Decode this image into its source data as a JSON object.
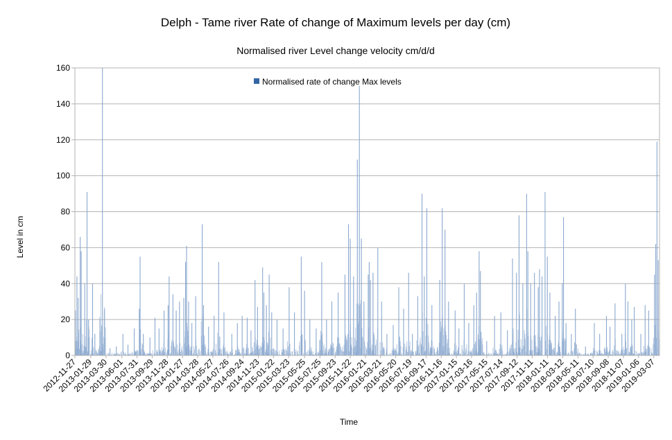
{
  "chart_data": {
    "type": "bar",
    "title": "Delph - Tame river Rate of change of Maximum levels per day (cm)",
    "subtitle": "Normalised river Level change velocity cm/d/d",
    "xlabel": "Time",
    "ylabel": "Level in cm",
    "ylim": [
      0,
      160
    ],
    "yticks": [
      0,
      20,
      40,
      60,
      80,
      100,
      120,
      140,
      160
    ],
    "grid": true,
    "legend": {
      "placement": "top-center",
      "entries": [
        "Normalised rate of change Max levels"
      ]
    },
    "colors": {
      "series": "#8aa8cf",
      "legend_swatch": "#3465a4",
      "grid": "#b3b3b3",
      "axis": "#b3b3b3"
    },
    "x_tick_labels": [
      "2012-11-27",
      "2013-01-29",
      "2013-03-30",
      "2013-06-01",
      "2013-07-31",
      "2013-09-29",
      "2013-11-28",
      "2014-01-27",
      "2014-03-28",
      "2014-05-27",
      "2014-07-26",
      "2014-09-24",
      "2014-11-23",
      "2015-01-22",
      "2015-03-23",
      "2015-05-25",
      "2015-07-25",
      "2015-09-23",
      "2015-11-22",
      "2016-01-21",
      "2016-03-21",
      "2016-05-20",
      "2016-07-19",
      "2016-09-17",
      "2016-11-16",
      "2017-01-15",
      "2017-03-16",
      "2017-05-15",
      "2017-07-14",
      "2017-09-12",
      "2017-11-11",
      "2018-01-11",
      "2018-03-12",
      "2018-05-11",
      "2018-07-10",
      "2018-09-08",
      "2018-11-07",
      "2019-01-06",
      "2019-03-07"
    ],
    "x_range": [
      "2012-11-27",
      "2019-03-30"
    ],
    "series": [
      {
        "name": "Normalised rate of change Max levels",
        "peaks": [
          {
            "date": "2012-11-29",
            "value": 25
          },
          {
            "date": "2012-12-05",
            "value": 44
          },
          {
            "date": "2012-12-10",
            "value": 32
          },
          {
            "date": "2012-12-18",
            "value": 66
          },
          {
            "date": "2012-12-22",
            "value": 58
          },
          {
            "date": "2013-01-05",
            "value": 40
          },
          {
            "date": "2013-01-14",
            "value": 91
          },
          {
            "date": "2013-01-20",
            "value": 20
          },
          {
            "date": "2013-02-05",
            "value": 40
          },
          {
            "date": "2013-02-14",
            "value": 12
          },
          {
            "date": "2013-03-05",
            "value": 5
          },
          {
            "date": "2013-03-16",
            "value": 160
          },
          {
            "date": "2013-04-15",
            "value": 4
          },
          {
            "date": "2013-05-10",
            "value": 5
          },
          {
            "date": "2013-06-05",
            "value": 12
          },
          {
            "date": "2013-06-25",
            "value": 6
          },
          {
            "date": "2013-07-20",
            "value": 15
          },
          {
            "date": "2013-08-09",
            "value": 26
          },
          {
            "date": "2013-08-12",
            "value": 55
          },
          {
            "date": "2013-08-25",
            "value": 12
          },
          {
            "date": "2013-09-20",
            "value": 10
          },
          {
            "date": "2013-10-10",
            "value": 21
          },
          {
            "date": "2013-10-26",
            "value": 15
          },
          {
            "date": "2013-11-15",
            "value": 25
          },
          {
            "date": "2013-12-01",
            "value": 28
          },
          {
            "date": "2013-12-05",
            "value": 44
          },
          {
            "date": "2013-12-20",
            "value": 34
          },
          {
            "date": "2014-01-02",
            "value": 25
          },
          {
            "date": "2014-01-15",
            "value": 30
          },
          {
            "date": "2014-02-01",
            "value": 32
          },
          {
            "date": "2014-02-08",
            "value": 52
          },
          {
            "date": "2014-02-12",
            "value": 61
          },
          {
            "date": "2014-02-20",
            "value": 30
          },
          {
            "date": "2014-03-05",
            "value": 18
          },
          {
            "date": "2014-03-20",
            "value": 33
          },
          {
            "date": "2014-04-15",
            "value": 73
          },
          {
            "date": "2014-04-20",
            "value": 28
          },
          {
            "date": "2014-05-10",
            "value": 16
          },
          {
            "date": "2014-06-01",
            "value": 22
          },
          {
            "date": "2014-06-19",
            "value": 52
          },
          {
            "date": "2014-07-10",
            "value": 24
          },
          {
            "date": "2014-08-10",
            "value": 12
          },
          {
            "date": "2014-09-01",
            "value": 18
          },
          {
            "date": "2014-09-20",
            "value": 22
          },
          {
            "date": "2014-10-10",
            "value": 21
          },
          {
            "date": "2014-10-25",
            "value": 14
          },
          {
            "date": "2014-11-10",
            "value": 42
          },
          {
            "date": "2014-11-20",
            "value": 27
          },
          {
            "date": "2014-12-10",
            "value": 49
          },
          {
            "date": "2014-12-15",
            "value": 35
          },
          {
            "date": "2014-12-25",
            "value": 28
          },
          {
            "date": "2015-01-05",
            "value": 45
          },
          {
            "date": "2015-01-15",
            "value": 24
          },
          {
            "date": "2015-02-05",
            "value": 20
          },
          {
            "date": "2015-03-01",
            "value": 15
          },
          {
            "date": "2015-03-25",
            "value": 38
          },
          {
            "date": "2015-04-15",
            "value": 24
          },
          {
            "date": "2015-05-12",
            "value": 55
          },
          {
            "date": "2015-05-25",
            "value": 36
          },
          {
            "date": "2015-06-15",
            "value": 20
          },
          {
            "date": "2015-07-10",
            "value": 15
          },
          {
            "date": "2015-08-01",
            "value": 52
          },
          {
            "date": "2015-08-20",
            "value": 20
          },
          {
            "date": "2015-09-10",
            "value": 30
          },
          {
            "date": "2015-10-05",
            "value": 35
          },
          {
            "date": "2015-11-01",
            "value": 45
          },
          {
            "date": "2015-11-15",
            "value": 73
          },
          {
            "date": "2015-11-22",
            "value": 65
          },
          {
            "date": "2015-12-05",
            "value": 44
          },
          {
            "date": "2015-12-20",
            "value": 109
          },
          {
            "date": "2015-12-28",
            "value": 150
          },
          {
            "date": "2016-01-05",
            "value": 65
          },
          {
            "date": "2016-01-15",
            "value": 30
          },
          {
            "date": "2016-02-01",
            "value": 45
          },
          {
            "date": "2016-02-05",
            "value": 52
          },
          {
            "date": "2016-02-10",
            "value": 42
          },
          {
            "date": "2016-02-20",
            "value": 46
          },
          {
            "date": "2016-03-10",
            "value": 60
          },
          {
            "date": "2016-03-25",
            "value": 30
          },
          {
            "date": "2016-04-15",
            "value": 12
          },
          {
            "date": "2016-05-10",
            "value": 17
          },
          {
            "date": "2016-06-01",
            "value": 38
          },
          {
            "date": "2016-06-20",
            "value": 26
          },
          {
            "date": "2016-07-10",
            "value": 46
          },
          {
            "date": "2016-07-25",
            "value": 12
          },
          {
            "date": "2016-08-15",
            "value": 33
          },
          {
            "date": "2016-09-01",
            "value": 90
          },
          {
            "date": "2016-09-10",
            "value": 44
          },
          {
            "date": "2016-09-20",
            "value": 82
          },
          {
            "date": "2016-10-10",
            "value": 28
          },
          {
            "date": "2016-11-10",
            "value": 42
          },
          {
            "date": "2016-11-20",
            "value": 82
          },
          {
            "date": "2016-12-01",
            "value": 70
          },
          {
            "date": "2016-12-15",
            "value": 30
          },
          {
            "date": "2017-01-10",
            "value": 25
          },
          {
            "date": "2017-01-25",
            "value": 15
          },
          {
            "date": "2017-02-15",
            "value": 40
          },
          {
            "date": "2017-03-05",
            "value": 18
          },
          {
            "date": "2017-03-25",
            "value": 28
          },
          {
            "date": "2017-04-05",
            "value": 35
          },
          {
            "date": "2017-04-15",
            "value": 58
          },
          {
            "date": "2017-04-20",
            "value": 47
          },
          {
            "date": "2017-05-15",
            "value": 8
          },
          {
            "date": "2017-06-15",
            "value": 22
          },
          {
            "date": "2017-07-10",
            "value": 24
          },
          {
            "date": "2017-08-05",
            "value": 14
          },
          {
            "date": "2017-08-25",
            "value": 54
          },
          {
            "date": "2017-09-10",
            "value": 46
          },
          {
            "date": "2017-09-20",
            "value": 78
          },
          {
            "date": "2017-10-05",
            "value": 40
          },
          {
            "date": "2017-10-20",
            "value": 90
          },
          {
            "date": "2017-10-25",
            "value": 58
          },
          {
            "date": "2017-11-05",
            "value": 40
          },
          {
            "date": "2017-11-20",
            "value": 46
          },
          {
            "date": "2017-12-05",
            "value": 38
          },
          {
            "date": "2017-12-10",
            "value": 48
          },
          {
            "date": "2017-12-20",
            "value": 44
          },
          {
            "date": "2018-01-01",
            "value": 91
          },
          {
            "date": "2018-01-10",
            "value": 55
          },
          {
            "date": "2018-01-20",
            "value": 35
          },
          {
            "date": "2018-02-10",
            "value": 22
          },
          {
            "date": "2018-02-25",
            "value": 30
          },
          {
            "date": "2018-03-10",
            "value": 40
          },
          {
            "date": "2018-03-15",
            "value": 77
          },
          {
            "date": "2018-03-25",
            "value": 18
          },
          {
            "date": "2018-04-15",
            "value": 12
          },
          {
            "date": "2018-05-01",
            "value": 26
          },
          {
            "date": "2018-06-10",
            "value": 5
          },
          {
            "date": "2018-07-15",
            "value": 18
          },
          {
            "date": "2018-08-05",
            "value": 12
          },
          {
            "date": "2018-09-01",
            "value": 22
          },
          {
            "date": "2018-09-15",
            "value": 16
          },
          {
            "date": "2018-10-05",
            "value": 29
          },
          {
            "date": "2018-11-01",
            "value": 12
          },
          {
            "date": "2018-11-15",
            "value": 40
          },
          {
            "date": "2018-11-25",
            "value": 30
          },
          {
            "date": "2018-12-10",
            "value": 20
          },
          {
            "date": "2018-12-20",
            "value": 27
          },
          {
            "date": "2019-01-15",
            "value": 12
          },
          {
            "date": "2019-02-01",
            "value": 28
          },
          {
            "date": "2019-02-15",
            "value": 25
          },
          {
            "date": "2019-03-10",
            "value": 45
          },
          {
            "date": "2019-03-15",
            "value": 62
          },
          {
            "date": "2019-03-20",
            "value": 119
          },
          {
            "date": "2019-03-25",
            "value": 53
          }
        ]
      }
    ]
  }
}
